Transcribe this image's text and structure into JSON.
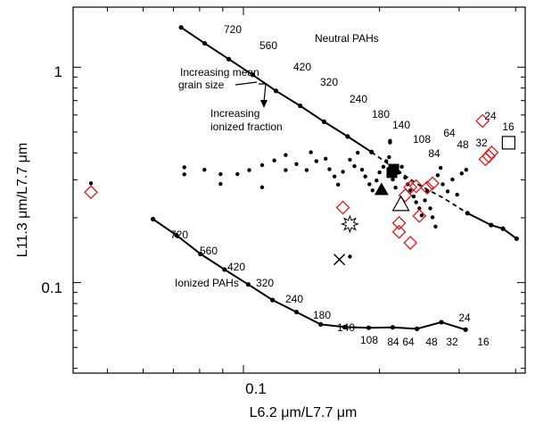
{
  "chart_data": {
    "type": "scatter",
    "scale": "log-log",
    "xlabel": "L6.2 μm/L7.7 μm",
    "ylabel": "L11.3 μm/L7.7 μm",
    "x_ticks": [
      "0.1"
    ],
    "y_ticks": [
      "1",
      "0.1"
    ],
    "xlim": [
      0.042,
      0.42
    ],
    "ylim": [
      0.038,
      1.9
    ],
    "annotations": {
      "neutral": "Neutral PAHs",
      "ionized": "Ionized PAHs",
      "grain_line1": "Increasing mean",
      "grain_line2": "grain size",
      "ionized_line1": "Increasing",
      "ionized_line2": "ionized fraction"
    },
    "neutral_track": {
      "points": [
        [
          0.0728,
          1.53
        ],
        [
          0.0821,
          1.29
        ],
        [
          0.0928,
          1.09
        ],
        [
          0.1048,
          0.922
        ],
        [
          0.118,
          0.776
        ],
        [
          0.1335,
          0.662
        ],
        [
          0.1508,
          0.558
        ],
        [
          0.17,
          0.477
        ],
        [
          0.192,
          0.404
        ],
        [
          0.217,
          0.336
        ],
        [
          0.245,
          0.283
        ],
        [
          0.276,
          0.248
        ],
        [
          0.313,
          0.21
        ],
        [
          0.353,
          0.185
        ],
        [
          0.375,
          0.178
        ],
        [
          0.402,
          0.16
        ]
      ],
      "labels": [
        "720",
        "560",
        "420",
        "320",
        "240",
        "180",
        "140",
        "108",
        "84",
        "64",
        "48",
        "32",
        "24",
        "16"
      ],
      "labeled_points": [
        [
          0.0829,
          1.35
        ],
        [
          0.0937,
          1.14
        ],
        [
          0.1063,
          0.941
        ],
        [
          0.1211,
          0.783
        ],
        [
          0.139,
          0.627
        ],
        [
          0.159,
          0.505
        ],
        [
          0.18,
          0.419
        ],
        [
          0.206,
          0.341
        ],
        [
          0.212,
          0.274
        ],
        [
          0.202,
          0.296
        ],
        [
          0.241,
          0.303
        ],
        [
          0.275,
          0.283
        ],
        [
          0.304,
          0.21
        ],
        [
          0.337,
          0.183
        ]
      ]
    },
    "ionized_track": {
      "points": [
        [
          0.0631,
          0.197
        ],
        [
          0.0711,
          0.166
        ],
        [
          0.0803,
          0.136
        ],
        [
          0.0908,
          0.115
        ],
        [
          0.1025,
          0.098
        ],
        [
          0.116,
          0.083
        ],
        [
          0.131,
          0.073
        ],
        [
          0.1482,
          0.064
        ],
        [
          0.1675,
          0.0622
        ],
        [
          0.1893,
          0.0617
        ],
        [
          0.2139,
          0.062
        ],
        [
          0.242,
          0.061
        ],
        [
          0.274,
          0.0655
        ],
        [
          0.31,
          0.0605
        ]
      ],
      "labels": [
        "720",
        "560",
        "420",
        "320",
        "240",
        "180",
        "140",
        "108",
        "84",
        "64",
        "48",
        "32",
        "24",
        "16"
      ]
    },
    "sample_points": [
      [
        0.046,
        0.289
      ],
      [
        0.074,
        0.318
      ],
      [
        0.074,
        0.343
      ],
      [
        0.082,
        0.334
      ],
      [
        0.089,
        0.319
      ],
      [
        0.089,
        0.287
      ],
      [
        0.097,
        0.319
      ],
      [
        0.11,
        0.277
      ],
      [
        0.103,
        0.333
      ],
      [
        0.11,
        0.351
      ],
      [
        0.117,
        0.369
      ],
      [
        0.124,
        0.333
      ],
      [
        0.124,
        0.391
      ],
      [
        0.131,
        0.355
      ],
      [
        0.138,
        0.333
      ],
      [
        0.141,
        0.403
      ],
      [
        0.145,
        0.366
      ],
      [
        0.152,
        0.376
      ],
      [
        0.155,
        0.336
      ],
      [
        0.159,
        0.311
      ],
      [
        0.162,
        0.285
      ],
      [
        0.166,
        0.327
      ],
      [
        0.172,
        0.372
      ],
      [
        0.176,
        0.347
      ],
      [
        0.179,
        0.401
      ],
      [
        0.183,
        0.334
      ],
      [
        0.186,
        0.311
      ],
      [
        0.19,
        0.286
      ],
      [
        0.193,
        0.268
      ],
      [
        0.197,
        0.298
      ],
      [
        0.2,
        0.325
      ],
      [
        0.204,
        0.345
      ],
      [
        0.207,
        0.366
      ],
      [
        0.21,
        0.382
      ],
      [
        0.214,
        0.301
      ],
      [
        0.217,
        0.276
      ],
      [
        0.221,
        0.325
      ],
      [
        0.224,
        0.345
      ],
      [
        0.228,
        0.307
      ],
      [
        0.231,
        0.286
      ],
      [
        0.234,
        0.268
      ],
      [
        0.238,
        0.251
      ],
      [
        0.241,
        0.236
      ],
      [
        0.245,
        0.221
      ],
      [
        0.248,
        0.205
      ],
      [
        0.252,
        0.241
      ],
      [
        0.255,
        0.266
      ],
      [
        0.259,
        0.221
      ],
      [
        0.262,
        0.201
      ],
      [
        0.266,
        0.182
      ],
      [
        0.269,
        0.315
      ],
      [
        0.273,
        0.341
      ],
      [
        0.276,
        0.286
      ],
      [
        0.283,
        0.265
      ],
      [
        0.29,
        0.301
      ],
      [
        0.297,
        0.256
      ],
      [
        0.304,
        0.321
      ],
      [
        0.311,
        0.334
      ],
      [
        0.172,
        0.132
      ],
      [
        0.211,
        0.447
      ],
      [
        0.211,
        0.455
      ]
    ],
    "red_diamonds": [
      [
        0.046,
        0.263
      ],
      [
        0.166,
        0.223
      ],
      [
        0.221,
        0.189
      ],
      [
        0.221,
        0.172
      ],
      [
        0.228,
        0.254
      ],
      [
        0.234,
        0.277
      ],
      [
        0.241,
        0.28
      ],
      [
        0.245,
        0.204
      ],
      [
        0.234,
        0.153
      ],
      [
        0.255,
        0.276
      ],
      [
        0.262,
        0.289
      ],
      [
        0.338,
        0.563
      ],
      [
        0.343,
        0.374
      ],
      [
        0.349,
        0.386
      ],
      [
        0.354,
        0.402
      ]
    ],
    "special_markers": {
      "filled_squares": [
        [
          0.213,
          0.324
        ],
        [
          0.215,
          0.336
        ]
      ],
      "filled_triangle": [
        0.202,
        0.27
      ],
      "open_triangle": [
        0.223,
        0.231
      ],
      "star": [
        0.172,
        0.187
      ],
      "cross": [
        0.163,
        0.128
      ],
      "open_square": [
        0.386,
        0.446
      ]
    },
    "colors": {
      "diamond": "#e31a1c",
      "points": "#000000"
    }
  }
}
